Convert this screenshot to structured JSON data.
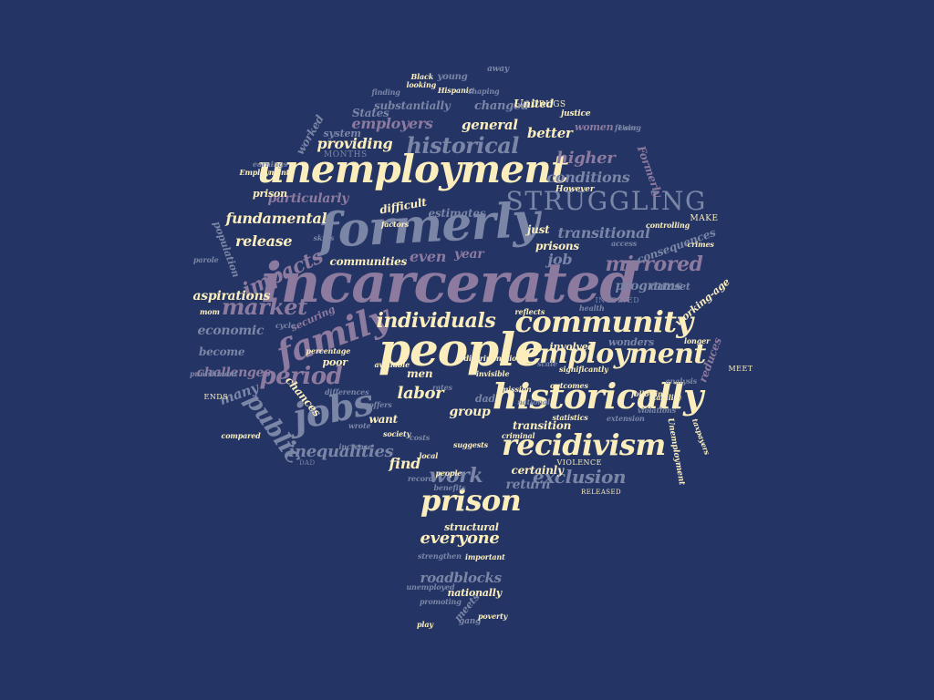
{
  "palette": {
    "background": "#233465",
    "cream": "#fbeebc",
    "slate": "#7b86a6",
    "mauve": "#8d7a9f",
    "light": "#c4c6d6"
  },
  "words": [
    {
      "text": "incarcerated",
      "color": "mauve"
    },
    {
      "text": "people",
      "color": "cream"
    },
    {
      "text": "formerly",
      "color": "slate"
    },
    {
      "text": "unemployment",
      "color": "cream"
    },
    {
      "text": "historically",
      "color": "cream"
    },
    {
      "text": "family",
      "color": "mauve"
    },
    {
      "text": "community",
      "color": "cream"
    },
    {
      "text": "recidivism",
      "color": "cream"
    },
    {
      "text": "prison",
      "color": "cream"
    },
    {
      "text": "employment",
      "color": "cream"
    },
    {
      "text": "jobs",
      "color": "slate"
    },
    {
      "text": "STRUGGLING",
      "color": "slate"
    },
    {
      "text": "public",
      "color": "slate"
    },
    {
      "text": "period",
      "color": "mauve"
    },
    {
      "text": "impacts",
      "color": "mauve"
    },
    {
      "text": "market",
      "color": "mauve"
    },
    {
      "text": "mirrored",
      "color": "mauve"
    },
    {
      "text": "individuals",
      "color": "cream"
    },
    {
      "text": "historical",
      "color": "slate"
    },
    {
      "text": "exclusion",
      "color": "slate"
    },
    {
      "text": "work",
      "color": "slate"
    },
    {
      "text": "labor",
      "color": "cream"
    },
    {
      "text": "inequalities",
      "color": "slate"
    },
    {
      "text": "everyone",
      "color": "cream"
    },
    {
      "text": "fundamental",
      "color": "cream"
    },
    {
      "text": "release",
      "color": "cream"
    },
    {
      "text": "even",
      "color": "mauve"
    },
    {
      "text": "year",
      "color": "mauve"
    },
    {
      "text": "job",
      "color": "slate"
    },
    {
      "text": "transitional",
      "color": "slate"
    },
    {
      "text": "higher",
      "color": "mauve"
    },
    {
      "text": "conditions",
      "color": "slate"
    },
    {
      "text": "better",
      "color": "cream"
    },
    {
      "text": "general",
      "color": "cream"
    },
    {
      "text": "providing",
      "color": "cream"
    },
    {
      "text": "employers",
      "color": "mauve"
    },
    {
      "text": "economic",
      "color": "slate"
    },
    {
      "text": "challenges",
      "color": "mauve"
    },
    {
      "text": "many",
      "color": "slate"
    },
    {
      "text": "roadblocks",
      "color": "slate"
    },
    {
      "text": "programs",
      "color": "slate"
    },
    {
      "text": "group",
      "color": "cream"
    },
    {
      "text": "find",
      "color": "cream"
    },
    {
      "text": "return",
      "color": "slate"
    },
    {
      "text": "certainly",
      "color": "cream"
    },
    {
      "text": "transition",
      "color": "cream"
    },
    {
      "text": "aspirations",
      "color": "cream"
    },
    {
      "text": "particularly",
      "color": "mauve"
    },
    {
      "text": "prisons",
      "color": "cream"
    },
    {
      "text": "just",
      "color": "cream"
    },
    {
      "text": "estimates",
      "color": "slate"
    },
    {
      "text": "difficult",
      "color": "cream"
    },
    {
      "text": "communities",
      "color": "cream"
    },
    {
      "text": "changed",
      "color": "slate"
    },
    {
      "text": "substantially",
      "color": "slate"
    },
    {
      "text": "United",
      "color": "cream"
    },
    {
      "text": "States",
      "color": "slate"
    },
    {
      "text": "women",
      "color": "mauve"
    },
    {
      "text": "worked",
      "color": "slate"
    },
    {
      "text": "system",
      "color": "slate"
    },
    {
      "text": "Formerly",
      "color": "mauve"
    },
    {
      "text": "consequences",
      "color": "slate"
    },
    {
      "text": "dataset",
      "color": "slate"
    },
    {
      "text": "working-age",
      "color": "cream"
    },
    {
      "text": "reduces",
      "color": "mauve"
    },
    {
      "text": "involved",
      "color": "cream"
    },
    {
      "text": "wonders",
      "color": "slate"
    },
    {
      "text": "securing",
      "color": "mauve"
    },
    {
      "text": "become",
      "color": "slate"
    },
    {
      "text": "poor",
      "color": "cream"
    },
    {
      "text": "chances",
      "color": "cream"
    },
    {
      "text": "want",
      "color": "cream"
    },
    {
      "text": "structural",
      "color": "cream"
    },
    {
      "text": "nationally",
      "color": "cream"
    },
    {
      "text": "meets",
      "color": "slate"
    },
    {
      "text": "young",
      "color": "slate"
    },
    {
      "text": "away",
      "color": "slate"
    },
    {
      "text": "men",
      "color": "cream"
    },
    {
      "text": "dad",
      "color": "slate"
    },
    {
      "text": "population",
      "color": "slate"
    },
    {
      "text": "prison ",
      "color": "cream"
    },
    {
      "text": "MONTHS",
      "color": "slate"
    },
    {
      "text": "strengthen",
      "color": "slate"
    },
    {
      "text": "important",
      "color": "cream"
    },
    {
      "text": "unemployed",
      "color": "slate"
    },
    {
      "text": "promoting",
      "color": "slate"
    },
    {
      "text": "gang",
      "color": "slate"
    },
    {
      "text": "poverty",
      "color": "cream"
    },
    {
      "text": "play",
      "color": "cream"
    },
    {
      "text": "DRUGS",
      "color": "cream"
    },
    {
      "text": "justice",
      "color": "cream"
    },
    {
      "text": "Using",
      "color": "slate"
    },
    {
      "text": "However",
      "color": "cream"
    },
    {
      "text": "controlling",
      "color": "cream"
    },
    {
      "text": "MAKE",
      "color": "cream"
    },
    {
      "text": "crimes",
      "color": "cream"
    },
    {
      "text": "MEET",
      "color": "cream"
    },
    {
      "text": "Unemployment",
      "color": "cream"
    },
    {
      "text": "taxpayers",
      "color": "cream"
    },
    {
      "text": "VIOLENCE",
      "color": "cream"
    },
    {
      "text": "RELEASED",
      "color": "cream"
    },
    {
      "text": "INVOLVED",
      "color": "slate"
    },
    {
      "text": "ENDS",
      "color": "cream"
    },
    {
      "text": "DAD",
      "color": "slate"
    },
    {
      "text": "mom",
      "color": "cream"
    },
    {
      "text": "parole",
      "color": "slate"
    },
    {
      "text": "punishment",
      "color": "slate"
    },
    {
      "text": "compared",
      "color": "cream"
    },
    {
      "text": "Black",
      "color": "cream"
    },
    {
      "text": "Hispanic",
      "color": "cream"
    },
    {
      "text": "looking",
      "color": "cream"
    },
    {
      "text": "shaping",
      "color": "slate"
    },
    {
      "text": "finding",
      "color": "slate"
    },
    {
      "text": "Employment",
      "color": "cream"
    },
    {
      "text": "cycle",
      "color": "slate"
    },
    {
      "text": "discrimination",
      "color": "cream"
    },
    {
      "text": "rates",
      "color": "slate"
    },
    {
      "text": "invisible",
      "color": "cream"
    },
    {
      "text": "wrote",
      "color": "slate"
    },
    {
      "text": "increase",
      "color": "slate"
    },
    {
      "text": "benefits",
      "color": "slate"
    },
    {
      "text": "stability",
      "color": "cream"
    },
    {
      "text": "fewer",
      "color": "slate"
    },
    {
      "text": "people ",
      "color": "cream"
    },
    {
      "text": "earnings",
      "color": "slate"
    },
    {
      "text": "longer",
      "color": "cream"
    },
    {
      "text": "factors",
      "color": "cream"
    },
    {
      "text": "skills",
      "color": "slate"
    },
    {
      "text": "mission",
      "color": "cream"
    },
    {
      "text": "offers",
      "color": "slate"
    },
    {
      "text": "reflects",
      "color": "cream"
    },
    {
      "text": "costs",
      "color": "slate"
    },
    {
      "text": "suggests",
      "color": "cream"
    },
    {
      "text": "criminal",
      "color": "cream"
    },
    {
      "text": "record",
      "color": "slate"
    },
    {
      "text": "statistics",
      "color": "cream"
    },
    {
      "text": "extension",
      "color": "slate"
    },
    {
      "text": "significantly",
      "color": "cream"
    },
    {
      "text": "analysis",
      "color": "slate"
    },
    {
      "text": "following",
      "color": "cream"
    },
    {
      "text": "access",
      "color": "slate"
    },
    {
      "text": "percentage",
      "color": "cream"
    },
    {
      "text": "health",
      "color": "slate"
    },
    {
      "text": "outcomes",
      "color": "cream"
    },
    {
      "text": "violations",
      "color": "slate"
    },
    {
      "text": "society",
      "color": "cream"
    },
    {
      "text": "national",
      "color": "slate"
    },
    {
      "text": "local",
      "color": "cream"
    },
    {
      "text": "differences",
      "color": "slate"
    },
    {
      "text": "available",
      "color": "cream"
    },
    {
      "text": "scale",
      "color": "slate"
    },
    {
      "text": "average",
      "color": "cream"
    }
  ]
}
